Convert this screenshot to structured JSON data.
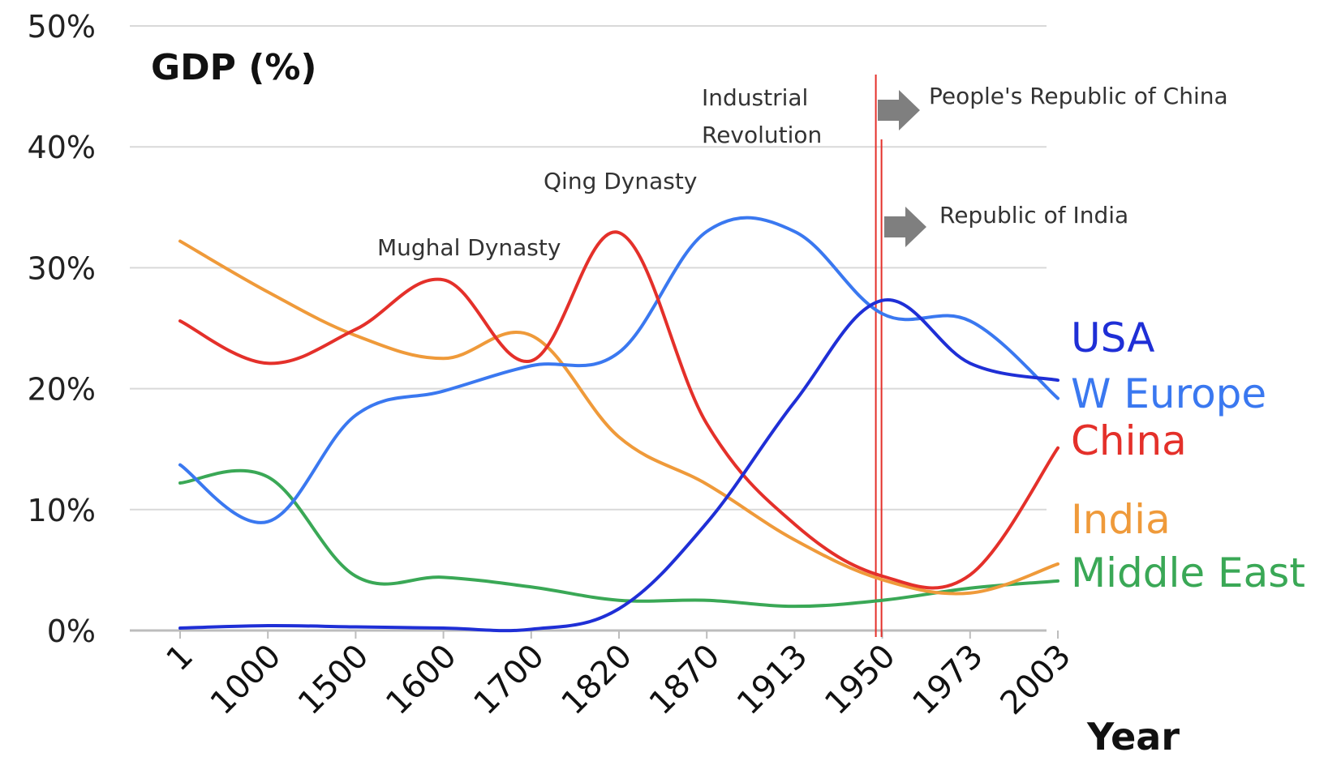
{
  "chart_data": {
    "type": "line",
    "title": "GDP (%)",
    "xlabel": "Year",
    "ylabel": "",
    "categories": [
      "1",
      "1000",
      "1500",
      "1600",
      "1700",
      "1820",
      "1870",
      "1913",
      "1950",
      "1973",
      "2003"
    ],
    "ylim": [
      0,
      50
    ],
    "yticks": [
      "0%",
      "10%",
      "20%",
      "30%",
      "40%",
      "50%"
    ],
    "grid": true,
    "series": [
      {
        "name": "USA",
        "color": "#1f2fd6",
        "values": [
          0.2,
          0.4,
          0.3,
          0.2,
          0.1,
          1.8,
          8.9,
          18.9,
          27.3,
          22.1,
          20.7
        ]
      },
      {
        "name": "W Europe",
        "color": "#3a78f0",
        "values": [
          13.7,
          9.0,
          17.8,
          19.8,
          21.9,
          23.0,
          33.0,
          33.0,
          26.2,
          25.6,
          19.2
        ]
      },
      {
        "name": "China",
        "color": "#e4302a",
        "values": [
          25.6,
          22.1,
          24.9,
          29.0,
          22.3,
          32.9,
          17.1,
          8.8,
          4.5,
          4.6,
          15.1
        ]
      },
      {
        "name": "India",
        "color": "#ef9a3a",
        "values": [
          32.2,
          28.0,
          24.4,
          22.5,
          24.4,
          16.0,
          12.1,
          7.5,
          4.2,
          3.1,
          5.5
        ]
      },
      {
        "name": "Middle East",
        "color": "#3aa856",
        "values": [
          12.2,
          12.7,
          4.5,
          4.4,
          3.6,
          2.5,
          2.5,
          2.0,
          2.5,
          3.5,
          4.1
        ]
      }
    ],
    "annotations": [
      {
        "id": "mughal",
        "lines": [
          "Mughal Dynasty"
        ]
      },
      {
        "id": "qing",
        "lines": [
          "Qing Dynasty"
        ]
      },
      {
        "id": "industrial",
        "lines": [
          "Industrial",
          "Revolution"
        ]
      },
      {
        "id": "prc",
        "lines": [
          "People's Republic of China"
        ]
      },
      {
        "id": "india_rep",
        "lines": [
          "Republic of India"
        ]
      }
    ],
    "markers": {
      "color": "#e4302a"
    }
  }
}
